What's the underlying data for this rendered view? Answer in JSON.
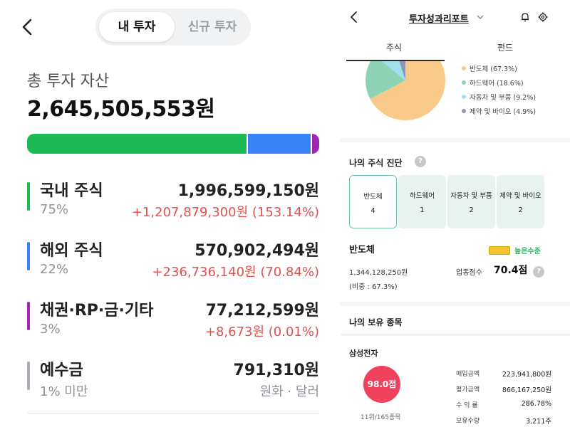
{
  "left": {
    "tabs": [
      {
        "label": "내 투자",
        "active": true
      },
      {
        "label": "신규 투자",
        "active": false
      }
    ],
    "total": {
      "label": "총 투자 자산",
      "value": "2,645,505,553원"
    },
    "allocation": [
      {
        "name": "국내 주식",
        "share": 0.75,
        "color": "#1db954"
      },
      {
        "name": "해외 주식",
        "share": 0.22,
        "color": "#3b82f6"
      },
      {
        "name": "채권·RP·금·기타",
        "share": 0.03,
        "color": "#9c27b0"
      }
    ],
    "assets": [
      {
        "name": "국내 주식",
        "pct": "75%",
        "amount": "1,996,599,150원",
        "change": "+1,207,879,300원 (153.14%)",
        "color": "#1db954"
      },
      {
        "name": "해외 주식",
        "pct": "22%",
        "amount": "570,902,494원",
        "change": "+236,736,140원 (70.84%)",
        "color": "#3b82f6"
      },
      {
        "name": "채권·RP·금·기타",
        "pct": "3%",
        "amount": "77,212,599원",
        "change": "+8,673원 (0.01%)",
        "color": "#9c27b0"
      },
      {
        "name": "예수금",
        "pct": "1% 미만",
        "amount": "791,310원",
        "change": "원화 · 달러",
        "color": "#a7abb2"
      }
    ]
  },
  "right": {
    "title": "투자성과리포트",
    "tabs": [
      {
        "label": "주식",
        "active": true
      },
      {
        "label": "펀드",
        "active": false
      }
    ],
    "pie": {
      "slices": [
        {
          "label": "반도체 (67.3%)",
          "value": 67.3,
          "color": "#f9c98a"
        },
        {
          "label": "하드웨어 (18.6%)",
          "value": 18.6,
          "color": "#8fd3b6"
        },
        {
          "label": "자동차 및 부품 (9.2%)",
          "value": 9.2,
          "color": "#9fdfee"
        },
        {
          "label": "제약 및 바이오 (4.9%)",
          "value": 4.9,
          "color": "#8e96b4"
        }
      ]
    },
    "diagnosis": {
      "title": "나의 주식 진단",
      "categories": [
        {
          "name": "반도체",
          "count": "4",
          "selected": true
        },
        {
          "name": "하드웨어",
          "count": "1",
          "selected": false
        },
        {
          "name": "자동차 및 부품",
          "count": "2",
          "selected": false
        },
        {
          "name": "제약 및 바이오",
          "count": "2",
          "selected": false
        }
      ]
    },
    "sector": {
      "name": "반도체",
      "level": "높은수준",
      "amount": "1,344,128,250원",
      "weight": "(비중 : 67.3%)",
      "score_label": "업종점수",
      "score": "70.4점"
    },
    "holdings": {
      "title": "나의 보유 종목",
      "stock": {
        "name": "삼성전자",
        "score": "98.0점",
        "rank": "11위/165종목",
        "metrics": [
          {
            "label": "매입금액",
            "value": "223,941,800원"
          },
          {
            "label": "평가금액",
            "value": "866,167,250원"
          },
          {
            "label": "수 익 률",
            "value": "286.78%"
          },
          {
            "label": "보유수량",
            "value": "3,211주"
          }
        ]
      }
    }
  }
}
